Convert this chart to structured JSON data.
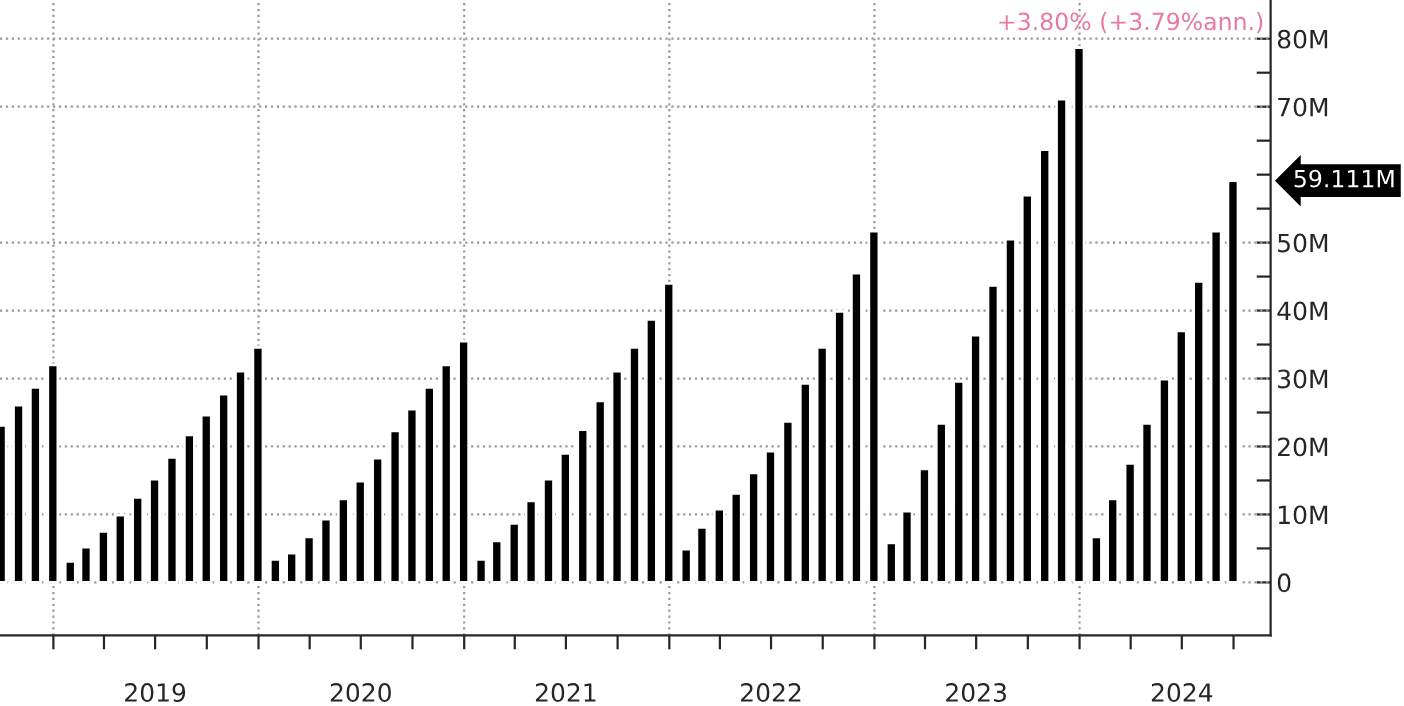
{
  "chart_data": {
    "type": "bar",
    "x": [
      "2018-09-30",
      "2018-10-31",
      "2018-11-30",
      "2018-12-31",
      "2019-01-31",
      "2019-02-28",
      "2019-03-31",
      "2019-04-30",
      "2019-05-31",
      "2019-06-30",
      "2019-07-31",
      "2019-08-31",
      "2019-09-30",
      "2019-10-31",
      "2019-11-30",
      "2019-12-31",
      "2020-01-31",
      "2020-02-29",
      "2020-03-31",
      "2020-04-30",
      "2020-05-31",
      "2020-06-30",
      "2020-07-31",
      "2020-08-31",
      "2020-09-30",
      "2020-10-31",
      "2020-11-30",
      "2020-12-31",
      "2021-01-31",
      "2021-02-28",
      "2021-03-31",
      "2021-04-30",
      "2021-05-31",
      "2021-06-30",
      "2021-07-31",
      "2021-08-31",
      "2021-09-30",
      "2021-10-31",
      "2021-11-30",
      "2021-12-31",
      "2022-01-31",
      "2022-02-28",
      "2022-03-31",
      "2022-04-30",
      "2022-05-31",
      "2022-06-30",
      "2022-07-31",
      "2022-08-31",
      "2022-09-30",
      "2022-10-31",
      "2022-11-30",
      "2022-12-31",
      "2023-01-31",
      "2023-02-28",
      "2023-03-31",
      "2023-04-30",
      "2023-05-31",
      "2023-06-30",
      "2023-07-31",
      "2023-08-31",
      "2023-09-30",
      "2023-10-31",
      "2023-11-30",
      "2023-12-31",
      "2024-01-31",
      "2024-02-29",
      "2024-03-31",
      "2024-04-30",
      "2024-05-31",
      "2024-06-30",
      "2024-07-31",
      "2024-08-31",
      "2024-09-30"
    ],
    "series": [
      {
        "color": "#000000",
        "values": [
          23.1,
          26.1,
          28.7,
          32.0,
          3.1,
          5.2,
          7.5,
          9.9,
          12.5,
          15.2,
          18.4,
          21.7,
          24.6,
          27.7,
          31.1,
          34.6,
          3.4,
          4.3,
          6.7,
          9.3,
          12.3,
          14.9,
          18.3,
          22.3,
          25.5,
          28.7,
          32.0,
          35.5,
          3.4,
          6.1,
          8.7,
          12.0,
          15.2,
          19.0,
          22.5,
          26.7,
          31.1,
          34.6,
          38.7,
          44.0,
          4.9,
          8.1,
          10.8,
          13.1,
          16.1,
          19.3,
          23.7,
          29.3,
          34.6,
          39.9,
          45.5,
          51.7,
          5.8,
          10.5,
          16.7,
          23.4,
          29.6,
          36.4,
          43.7,
          50.5,
          57.0,
          63.7,
          71.1,
          78.7,
          6.7,
          12.3,
          17.5,
          23.4,
          29.9,
          37.0,
          44.3,
          51.7,
          59.111
        ]
      }
    ],
    "xlim": [
      "2018-09-28",
      "2024-12-06"
    ],
    "xticks": [
      {
        "value": "2019-01-01",
        "label": null
      },
      {
        "value": "2019-04-01",
        "label": null
      },
      {
        "value": "2019-07-01",
        "label": "2019"
      },
      {
        "value": "2019-10-01",
        "label": null
      },
      {
        "value": "2020-01-01",
        "label": null
      },
      {
        "value": "2020-04-01",
        "label": null
      },
      {
        "value": "2020-07-01",
        "label": "2020"
      },
      {
        "value": "2020-10-01",
        "label": null
      },
      {
        "value": "2021-01-01",
        "label": null
      },
      {
        "value": "2021-04-01",
        "label": null
      },
      {
        "value": "2021-07-01",
        "label": "2021"
      },
      {
        "value": "2021-10-01",
        "label": null
      },
      {
        "value": "2022-01-01",
        "label": null
      },
      {
        "value": "2022-04-01",
        "label": null
      },
      {
        "value": "2022-07-01",
        "label": "2022"
      },
      {
        "value": "2022-10-01",
        "label": null
      },
      {
        "value": "2023-01-01",
        "label": null
      },
      {
        "value": "2023-04-01",
        "label": null
      },
      {
        "value": "2023-07-01",
        "label": "2023"
      },
      {
        "value": "2023-10-01",
        "label": null
      },
      {
        "value": "2024-01-01",
        "label": null
      },
      {
        "value": "2024-04-01",
        "label": null
      },
      {
        "value": "2024-07-01",
        "label": "2024"
      },
      {
        "value": "2024-10-01",
        "label": null
      }
    ],
    "ylim": [
      -7.8,
      85.7
    ],
    "yticks": [
      {
        "value": 0,
        "label": "0"
      },
      {
        "value": 5,
        "label": null
      },
      {
        "value": 10,
        "label": "10M"
      },
      {
        "value": 15,
        "label": null
      },
      {
        "value": 20,
        "label": "20M"
      },
      {
        "value": 25,
        "label": null
      },
      {
        "value": 30,
        "label": "30M"
      },
      {
        "value": 35,
        "label": null
      },
      {
        "value": 40,
        "label": "40M"
      },
      {
        "value": 45,
        "label": null
      },
      {
        "value": 50,
        "label": "50M"
      },
      {
        "value": 55,
        "label": null
      },
      {
        "value": 60,
        "label": null
      },
      {
        "value": 65,
        "label": null
      },
      {
        "value": 70,
        "label": "70M"
      },
      {
        "value": 75,
        "label": null
      },
      {
        "value": 80,
        "label": "80M"
      }
    ],
    "grid": "y",
    "ref_lines": [
      {
        "axis": "x",
        "value": "2019-01-01",
        "label": null,
        "color": "#999999",
        "line_style": "dotted"
      },
      {
        "axis": "x",
        "value": "2020-01-01",
        "label": null,
        "color": "#999999",
        "line_style": "dotted"
      },
      {
        "axis": "x",
        "value": "2021-01-01",
        "label": null,
        "color": "#999999",
        "line_style": "dotted"
      },
      {
        "axis": "x",
        "value": "2022-01-01",
        "label": null,
        "color": "#999999",
        "line_style": "dotted"
      },
      {
        "axis": "x",
        "value": "2023-01-01",
        "label": null,
        "color": "#999999",
        "line_style": "dotted"
      },
      {
        "axis": "x",
        "value": "2024-01-01",
        "label": null,
        "color": "#999999",
        "line_style": "dotted"
      }
    ],
    "annotations": [
      "+3.80% (+3.79%ann.)",
      {
        "text": "59.111M",
        "x": "2024-09-30",
        "y": 59.111
      }
    ]
  }
}
